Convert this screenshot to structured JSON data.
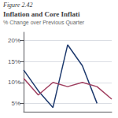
{
  "chart_data": {
    "type": "line",
    "annotations": [
      "Figure 2.42"
    ],
    "title": "Inflation and Core Inflati",
    "subtitle": "% Change over Previous Quarter",
    "x": [
      0,
      1,
      2,
      3,
      4,
      5,
      6
    ],
    "series": [
      {
        "color": "#1e3a6e",
        "values": [
          13,
          8,
          4,
          19,
          14,
          5,
          null
        ]
      },
      {
        "color": "#a04060",
        "values": [
          11,
          7,
          10,
          9,
          10,
          9,
          6
        ]
      }
    ],
    "xlim": [
      0,
      6
    ],
    "xticks": [],
    "ylim": [
      3,
      22
    ],
    "yticks": [
      {
        "value": 5,
        "label": "5%"
      },
      {
        "value": 10,
        "label": "10%"
      },
      {
        "value": 15,
        "label": "15%"
      },
      {
        "value": 20,
        "label": "20%"
      }
    ],
    "grid": true,
    "tick_labels": "y"
  }
}
